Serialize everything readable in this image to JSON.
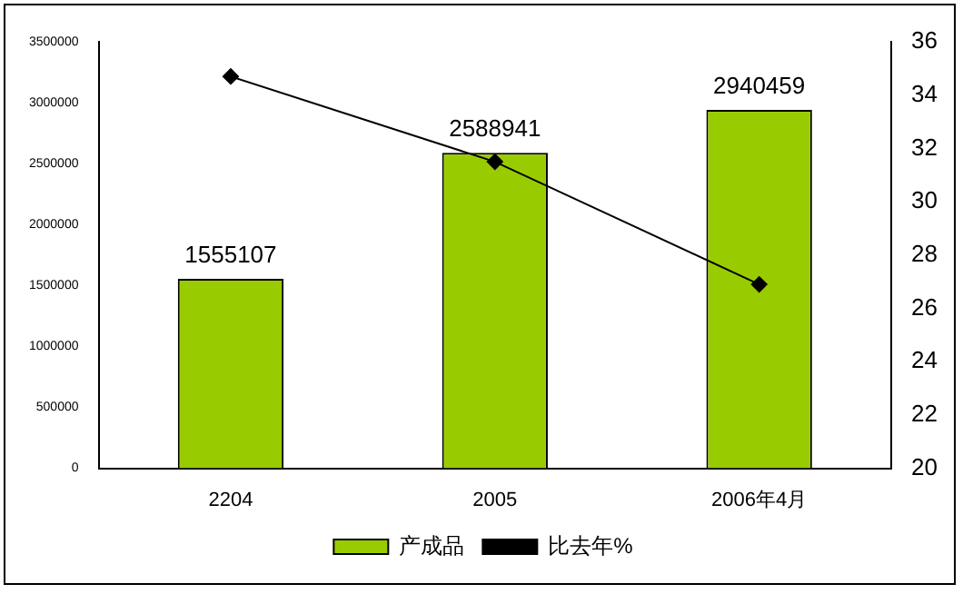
{
  "chart_data": {
    "type": "bar",
    "categories": [
      "2204",
      "2005",
      "2006年4月"
    ],
    "series": [
      {
        "name": "产成品",
        "color": "#99cc00",
        "values": [
          1555107,
          2588941,
          2940459
        ]
      },
      {
        "name": "比去年%",
        "type": "line",
        "color": "#000000",
        "axis": "y2",
        "marker": "diamond",
        "values": [
          34.7,
          31.5,
          26.9
        ]
      }
    ],
    "ylim": [
      0,
      3500000
    ],
    "yticks": [
      0,
      500000,
      1000000,
      1500000,
      2000000,
      2500000,
      3000000,
      3500000
    ],
    "y2lim": [
      20,
      36
    ],
    "y2ticks": [
      20,
      22,
      24,
      26,
      28,
      30,
      32,
      34,
      36
    ],
    "value_labels": [
      "1555107",
      "2588941",
      "2940459"
    ],
    "legend": "bottom",
    "grid": false
  }
}
